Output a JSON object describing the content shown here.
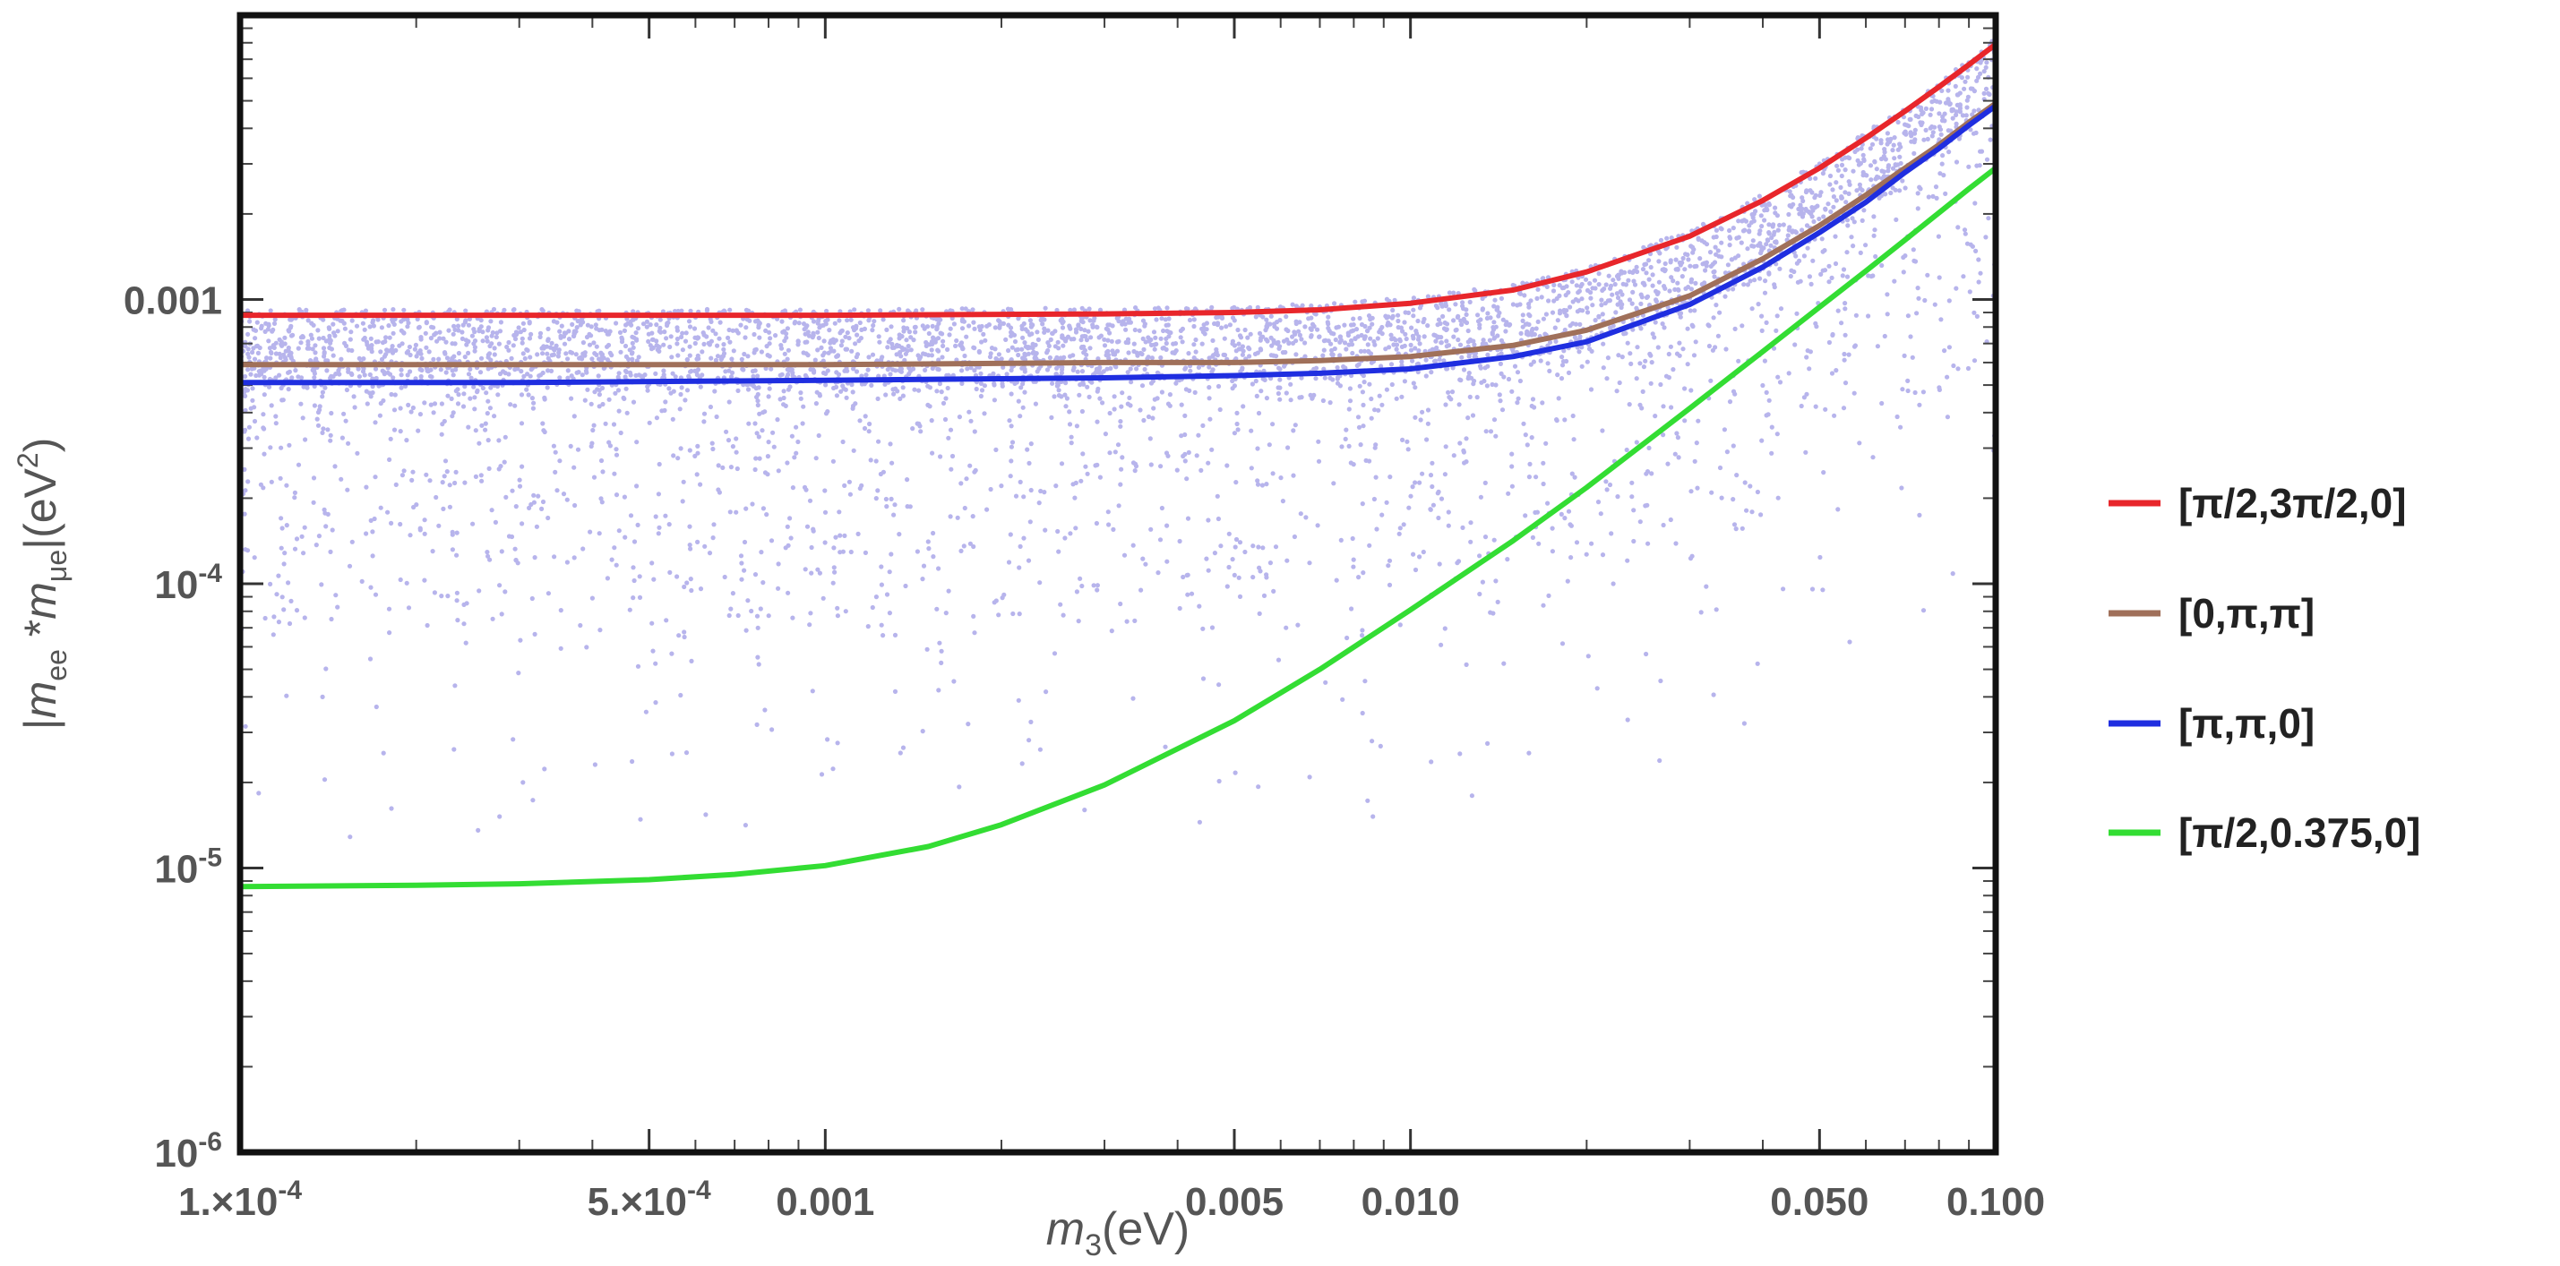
{
  "chart_data": {
    "type": "line",
    "x_scale": "log",
    "y_scale": "log",
    "xlim": [
      0.0001,
      0.1
    ],
    "ylim": [
      1e-06,
      0.01
    ],
    "xlabel": "m_3(eV)",
    "ylabel": "|m_ee * m_μe|(eV^2)",
    "x_tick_labels": [
      "1.×10^-4",
      "5.×10^-4",
      "0.001",
      "0.005",
      "0.010",
      "0.050",
      "0.100"
    ],
    "y_tick_labels": [
      "10^-6",
      "10^-5",
      "10^-4",
      "0.001"
    ],
    "x_ticks_major": [
      0.0001,
      0.0005,
      0.001,
      0.005,
      0.01,
      0.05,
      0.1
    ],
    "y_ticks_major": [
      1e-06,
      1e-05,
      0.0001,
      0.001
    ],
    "legend_position": "right",
    "scatter_color": "#b7b4ec",
    "series": [
      {
        "name": "[π/2,3π/2,0]",
        "color": "#e8262b",
        "x": [
          0.0001,
          0.0003,
          0.001,
          0.003,
          0.005,
          0.007,
          0.01,
          0.015,
          0.02,
          0.03,
          0.04,
          0.05,
          0.06,
          0.07,
          0.08,
          0.09,
          0.1
        ],
        "y": [
          0.00088,
          0.00088,
          0.00088,
          0.00089,
          0.0009,
          0.00092,
          0.00097,
          0.00108,
          0.00125,
          0.00167,
          0.00223,
          0.0029,
          0.0037,
          0.0046,
          0.0056,
          0.0067,
          0.0079
        ]
      },
      {
        "name": "[0,π,π]",
        "color": "#a0705a",
        "x": [
          0.0001,
          0.0003,
          0.001,
          0.003,
          0.005,
          0.007,
          0.01,
          0.015,
          0.02,
          0.03,
          0.04,
          0.05,
          0.06,
          0.07,
          0.08,
          0.09,
          0.1
        ],
        "y": [
          0.00059,
          0.00059,
          0.00059,
          0.0006,
          0.0006,
          0.00061,
          0.00063,
          0.00069,
          0.00078,
          0.00103,
          0.00139,
          0.00182,
          0.00233,
          0.0029,
          0.0035,
          0.0042,
          0.0049
        ]
      },
      {
        "name": "[π,π,0]",
        "color": "#1f2ee0",
        "x": [
          0.0001,
          0.0003,
          0.001,
          0.003,
          0.005,
          0.007,
          0.01,
          0.015,
          0.02,
          0.03,
          0.04,
          0.05,
          0.06,
          0.07,
          0.08,
          0.09,
          0.1
        ],
        "y": [
          0.00051,
          0.00051,
          0.00052,
          0.00053,
          0.00054,
          0.00055,
          0.00057,
          0.00063,
          0.00071,
          0.00096,
          0.0013,
          0.00172,
          0.0022,
          0.0028,
          0.0034,
          0.0041,
          0.0048
        ]
      },
      {
        "name": "[π/2,0.375,0]",
        "color": "#33dd33",
        "x": [
          0.0001,
          0.0002,
          0.0003,
          0.0005,
          0.0007,
          0.001,
          0.0015,
          0.002,
          0.003,
          0.005,
          0.007,
          0.01,
          0.015,
          0.02,
          0.03,
          0.04,
          0.05,
          0.06,
          0.07,
          0.08,
          0.09,
          0.1
        ],
        "y": [
          8.6e-06,
          8.7e-06,
          8.8e-06,
          9.1e-06,
          9.5e-06,
          1.02e-05,
          1.19e-05,
          1.42e-05,
          1.96e-05,
          3.3e-05,
          5e-05,
          8.1e-05,
          0.000142,
          0.000218,
          0.000414,
          0.000656,
          0.00094,
          0.00126,
          0.00162,
          0.00202,
          0.00245,
          0.0029
        ]
      }
    ]
  }
}
